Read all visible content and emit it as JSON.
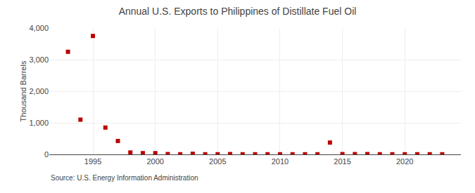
{
  "chart_data": {
    "type": "scatter",
    "title": "Annual U.S. Exports to Philippines of Distillate Fuel Oil",
    "ylabel": "Thousand Barrels",
    "annotations": [
      "Source: U.S. Energy Information Administration"
    ],
    "x": [
      1993,
      1994,
      1995,
      1996,
      1997,
      1998,
      1999,
      2000,
      2001,
      2002,
      2003,
      2004,
      2005,
      2006,
      2007,
      2008,
      2009,
      2010,
      2011,
      2012,
      2013,
      2014,
      2015,
      2016,
      2017,
      2018,
      2019,
      2020,
      2021,
      2022,
      2023
    ],
    "values": [
      3250,
      1100,
      3750,
      850,
      425,
      60,
      40,
      40,
      10,
      5,
      20,
      5,
      5,
      10,
      5,
      5,
      5,
      5,
      5,
      5,
      5,
      375,
      10,
      10,
      10,
      5,
      5,
      5,
      5,
      5,
      5
    ],
    "color": "#bb0000",
    "marker": "square",
    "xlim": [
      1991.5,
      2024.5
    ],
    "xticks": [
      1995,
      2000,
      2005,
      2010,
      2015,
      2020
    ],
    "ylim": [
      0,
      4000
    ],
    "yticks": [
      0,
      {
        "value": 1000,
        "label": "1,000"
      },
      {
        "value": 2000,
        "label": "2,000"
      },
      {
        "value": 3000,
        "label": "3,000"
      },
      {
        "value": 4000,
        "label": "4,000"
      }
    ],
    "grid": true
  }
}
